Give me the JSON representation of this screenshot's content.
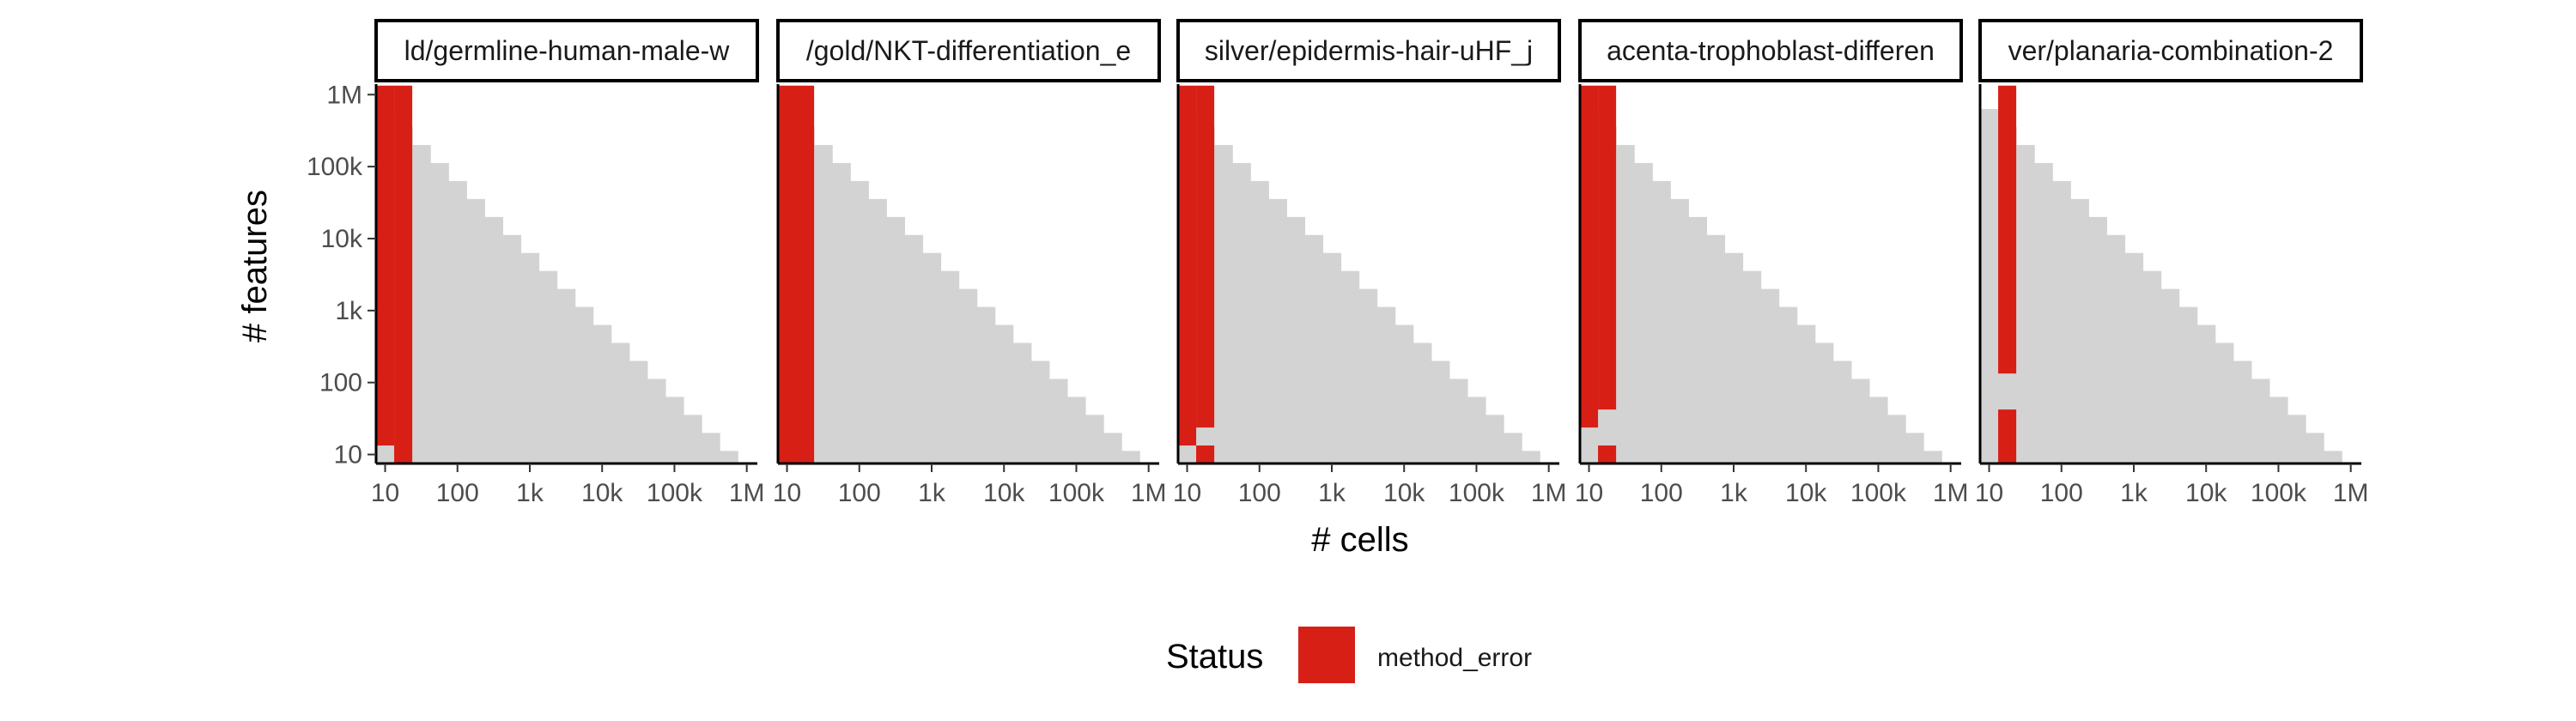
{
  "colors": {
    "background_cell": "#d3d3d3",
    "method_error": "#d71f16",
    "axis_line": "#000000",
    "tick_text": "#4d4d4d"
  },
  "chart_data": {
    "type": "heatmap",
    "x_scale": "log10",
    "y_scale": "log10",
    "xlabel": "# cells",
    "ylabel": "# features",
    "x_tick_values": [
      10,
      100,
      1000,
      10000,
      100000,
      1000000
    ],
    "x_tick_labels": [
      "10",
      "100",
      "1k",
      "10k",
      "100k",
      "1M"
    ],
    "y_tick_values": [
      10,
      100,
      1000,
      10000,
      100000,
      1000000
    ],
    "y_tick_labels": [
      "10",
      "100",
      "1k",
      "10k",
      "100k",
      "1M"
    ],
    "xlim": [
      7.5,
      1400000
    ],
    "ylim": [
      7.5,
      1400000
    ],
    "cell_grid": {
      "log10_min": 0.875,
      "log10_step": 0.25,
      "count": 22,
      "min_total_log10": 6.8
    },
    "legend": {
      "title": "Status",
      "entries": [
        {
          "label": "method_error",
          "color_key": "method_error"
        }
      ],
      "position": "bottom"
    },
    "facets": [
      {
        "strip_label": "ld/germline-human-male-w",
        "method_error_log10_ranges": [
          {
            "x_log10": [
              0.875,
              1.125
            ],
            "y_log10": [
              1.125,
              6.125
            ]
          },
          {
            "x_log10": [
              1.125,
              1.375
            ],
            "y_log10": [
              0.875,
              6.125
            ]
          }
        ]
      },
      {
        "strip_label": "/gold/NKT-differentiation_e",
        "method_error_log10_ranges": [
          {
            "x_log10": [
              0.875,
              1.375
            ],
            "y_log10": [
              0.875,
              6.125
            ]
          }
        ]
      },
      {
        "strip_label": "silver/epidermis-hair-uHF_j",
        "method_error_log10_ranges": [
          {
            "x_log10": [
              0.875,
              1.125
            ],
            "y_log10": [
              1.125,
              6.125
            ]
          },
          {
            "x_log10": [
              1.125,
              1.375
            ],
            "y_log10": [
              1.375,
              6.125
            ]
          },
          {
            "x_log10": [
              1.125,
              1.375
            ],
            "y_log10": [
              0.875,
              1.125
            ]
          }
        ]
      },
      {
        "strip_label": "acenta-trophoblast-differen",
        "method_error_log10_ranges": [
          {
            "x_log10": [
              0.875,
              1.125
            ],
            "y_log10": [
              1.375,
              6.125
            ]
          },
          {
            "x_log10": [
              1.125,
              1.375
            ],
            "y_log10": [
              1.625,
              6.125
            ]
          },
          {
            "x_log10": [
              1.125,
              1.375
            ],
            "y_log10": [
              0.875,
              1.125
            ]
          }
        ]
      },
      {
        "strip_label": "ver/planaria-combination-2",
        "method_error_log10_ranges": [
          {
            "x_log10": [
              1.125,
              1.375
            ],
            "y_log10": [
              0.875,
              1.625
            ]
          },
          {
            "x_log10": [
              1.125,
              1.375
            ],
            "y_log10": [
              2.125,
              6.125
            ]
          }
        ]
      }
    ]
  }
}
